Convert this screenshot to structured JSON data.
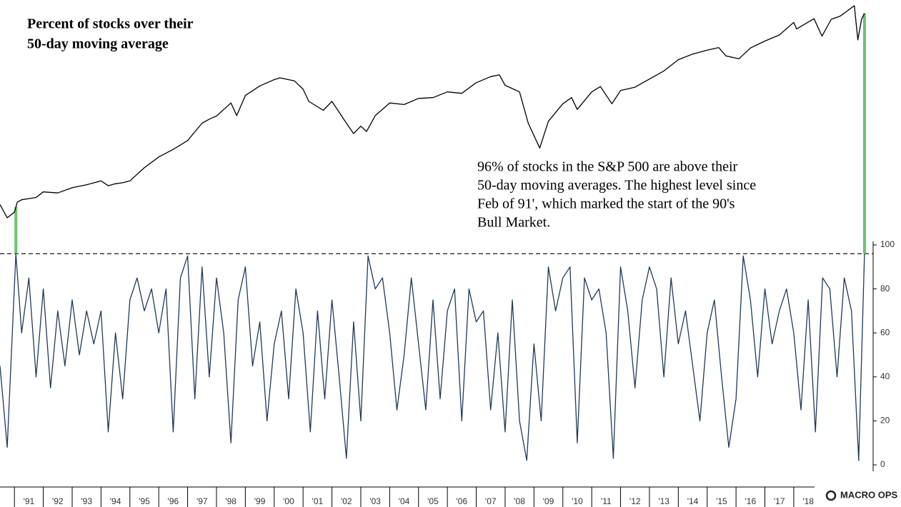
{
  "chart_data": [
    {
      "type": "line",
      "title": [
        "Percent of stocks over their",
        "50-day moving average"
      ],
      "annotation": [
        "96% of stocks in the S&P 500 are above their",
        "50-day moving averages. The highest level since",
        "Feb of 91', which marked the start of the 90's",
        "Bull Market."
      ],
      "log_scale": true,
      "color": "#000000",
      "highlight_color": "#6cc46a",
      "highlight_x": [
        1991.05,
        2020.45
      ],
      "x": [
        1990.5,
        1990.75,
        1991.0,
        1991.1,
        1991.25,
        1991.5,
        1991.75,
        1992.0,
        1992.5,
        1993.0,
        1993.5,
        1994.0,
        1994.25,
        1994.5,
        1994.75,
        1995.0,
        1995.5,
        1996.0,
        1996.5,
        1997.0,
        1997.5,
        1997.8,
        1998.0,
        1998.5,
        1998.7,
        1999.0,
        1999.5,
        2000.0,
        2000.2,
        2000.7,
        2001.0,
        2001.2,
        2001.7,
        2002.0,
        2002.5,
        2002.75,
        2003.0,
        2003.2,
        2003.5,
        2004.0,
        2004.5,
        2005.0,
        2005.5,
        2006.0,
        2006.5,
        2007.0,
        2007.5,
        2007.8,
        2008.0,
        2008.5,
        2008.8,
        2009.2,
        2009.5,
        2010.0,
        2010.3,
        2010.5,
        2011.0,
        2011.3,
        2011.7,
        2012.0,
        2012.5,
        2013.0,
        2013.5,
        2014.0,
        2014.5,
        2015.0,
        2015.4,
        2015.65,
        2016.1,
        2016.5,
        2017.0,
        2017.5,
        2018.0,
        2018.1,
        2018.7,
        2018.98,
        2019.3,
        2019.6,
        2020.1,
        2020.22,
        2020.35,
        2020.45
      ],
      "values": [
        360,
        310,
        330,
        370,
        380,
        385,
        390,
        415,
        410,
        435,
        450,
        470,
        445,
        455,
        460,
        470,
        545,
        615,
        670,
        740,
        900,
        950,
        975,
        1130,
        980,
        1230,
        1370,
        1470,
        1500,
        1450,
        1320,
        1150,
        1040,
        1150,
        900,
        800,
        870,
        820,
        980,
        1130,
        1110,
        1190,
        1200,
        1280,
        1260,
        1420,
        1520,
        1550,
        1380,
        1280,
        900,
        680,
        920,
        1120,
        1200,
        1050,
        1280,
        1360,
        1120,
        1300,
        1350,
        1480,
        1620,
        1840,
        1960,
        2050,
        2110,
        1920,
        1860,
        2100,
        2270,
        2430,
        2800,
        2600,
        2920,
        2400,
        2900,
        3000,
        3380,
        2300,
        2900,
        3100
      ]
    },
    {
      "type": "line",
      "color": "#1f3a5a",
      "reference_line": 96,
      "ylim": [
        0,
        100
      ],
      "yticks": [
        0,
        20,
        40,
        60,
        80,
        100
      ],
      "xlim": [
        1990.5,
        2020.75
      ],
      "xticks": [
        {
          "value": 1991.5,
          "label": "'91"
        },
        {
          "value": 1992.5,
          "label": "'92"
        },
        {
          "value": 1993.5,
          "label": "'93"
        },
        {
          "value": 1994.5,
          "label": "'94"
        },
        {
          "value": 1995.5,
          "label": "'95"
        },
        {
          "value": 1996.5,
          "label": "'96"
        },
        {
          "value": 1997.5,
          "label": "'97"
        },
        {
          "value": 1998.5,
          "label": "'98"
        },
        {
          "value": 1999.5,
          "label": "'99"
        },
        {
          "value": 2000.5,
          "label": "'00"
        },
        {
          "value": 2001.5,
          "label": "'01"
        },
        {
          "value": 2002.5,
          "label": "'02"
        },
        {
          "value": 2003.5,
          "label": "'03"
        },
        {
          "value": 2004.5,
          "label": "'04"
        },
        {
          "value": 2005.5,
          "label": "'05"
        },
        {
          "value": 2006.5,
          "label": "'06"
        },
        {
          "value": 2007.5,
          "label": "'07"
        },
        {
          "value": 2008.5,
          "label": "'08"
        },
        {
          "value": 2009.5,
          "label": "'09"
        },
        {
          "value": 2010.5,
          "label": "'10"
        },
        {
          "value": 2011.5,
          "label": "'11"
        },
        {
          "value": 2012.5,
          "label": "'12"
        },
        {
          "value": 2013.5,
          "label": "'13"
        },
        {
          "value": 2014.5,
          "label": "'14"
        },
        {
          "value": 2015.5,
          "label": "'15"
        },
        {
          "value": 2016.5,
          "label": "'16"
        },
        {
          "value": 2017.5,
          "label": "'17"
        },
        {
          "value": 2018.5,
          "label": "'18"
        }
      ],
      "x": [
        1990.5,
        1990.75,
        1991.05,
        1991.25,
        1991.5,
        1991.75,
        1992.0,
        1992.25,
        1992.5,
        1992.75,
        1993.0,
        1993.25,
        1993.5,
        1993.75,
        1994.0,
        1994.25,
        1994.5,
        1994.75,
        1995.0,
        1995.25,
        1995.5,
        1995.75,
        1996.0,
        1996.25,
        1996.5,
        1996.75,
        1997.0,
        1997.25,
        1997.5,
        1997.75,
        1998.0,
        1998.25,
        1998.5,
        1998.75,
        1999.0,
        1999.25,
        1999.5,
        1999.75,
        2000.0,
        2000.25,
        2000.5,
        2000.75,
        2001.0,
        2001.25,
        2001.5,
        2001.75,
        2002.0,
        2002.25,
        2002.5,
        2002.75,
        2003.0,
        2003.25,
        2003.5,
        2003.75,
        2004.0,
        2004.25,
        2004.5,
        2004.75,
        2005.0,
        2005.25,
        2005.5,
        2005.75,
        2006.0,
        2006.25,
        2006.5,
        2006.75,
        2007.0,
        2007.25,
        2007.5,
        2007.75,
        2008.0,
        2008.25,
        2008.5,
        2008.75,
        2009.0,
        2009.25,
        2009.5,
        2009.75,
        2010.0,
        2010.25,
        2010.5,
        2010.75,
        2011.0,
        2011.25,
        2011.5,
        2011.75,
        2012.0,
        2012.25,
        2012.5,
        2012.75,
        2013.0,
        2013.25,
        2013.5,
        2013.75,
        2014.0,
        2014.25,
        2014.5,
        2014.75,
        2015.0,
        2015.25,
        2015.5,
        2015.75,
        2016.0,
        2016.25,
        2016.5,
        2016.75,
        2017.0,
        2017.25,
        2017.5,
        2017.75,
        2018.0,
        2018.25,
        2018.5,
        2018.75,
        2019.0,
        2019.25,
        2019.5,
        2019.75,
        2020.0,
        2020.25,
        2020.45
      ],
      "values": [
        45,
        8,
        96,
        60,
        85,
        40,
        80,
        35,
        70,
        45,
        75,
        50,
        70,
        55,
        70,
        15,
        60,
        30,
        75,
        85,
        70,
        80,
        60,
        80,
        15,
        85,
        95,
        30,
        90,
        40,
        85,
        60,
        10,
        75,
        90,
        45,
        65,
        20,
        55,
        70,
        30,
        80,
        60,
        15,
        70,
        30,
        75,
        40,
        3,
        65,
        20,
        95,
        80,
        85,
        60,
        25,
        50,
        85,
        55,
        25,
        75,
        30,
        70,
        80,
        20,
        80,
        65,
        70,
        25,
        60,
        15,
        75,
        20,
        2,
        55,
        20,
        90,
        70,
        85,
        90,
        10,
        85,
        75,
        80,
        60,
        3,
        90,
        70,
        35,
        75,
        90,
        80,
        40,
        85,
        55,
        70,
        45,
        20,
        60,
        75,
        40,
        8,
        30,
        95,
        75,
        40,
        80,
        55,
        70,
        80,
        60,
        25,
        75,
        15,
        85,
        80,
        40,
        85,
        70,
        2,
        96
      ]
    },
    {
      "logo": "MACRO OPS"
    }
  ]
}
